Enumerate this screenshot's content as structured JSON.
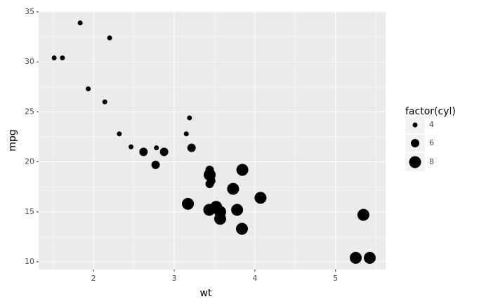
{
  "chart_data": {
    "type": "scatter",
    "x_label": "wt",
    "y_label": "mpg",
    "x": [
      2.62,
      2.875,
      2.32,
      3.215,
      3.44,
      3.46,
      3.57,
      3.19,
      3.15,
      3.44,
      3.44,
      4.07,
      3.73,
      3.78,
      5.25,
      5.424,
      5.345,
      2.2,
      1.615,
      1.835,
      2.465,
      3.52,
      3.435,
      3.84,
      3.845,
      1.935,
      2.14,
      1.513,
      3.17,
      2.77,
      3.57,
      2.78
    ],
    "y": [
      21.0,
      21.0,
      22.8,
      21.4,
      18.7,
      18.1,
      14.3,
      24.4,
      22.8,
      19.2,
      17.8,
      16.4,
      17.3,
      15.2,
      10.4,
      10.4,
      14.7,
      32.4,
      30.4,
      33.9,
      21.5,
      15.5,
      15.2,
      13.3,
      19.2,
      27.3,
      26.0,
      30.4,
      15.8,
      19.7,
      15.0,
      21.4
    ],
    "size": [
      6,
      6,
      4,
      6,
      8,
      6,
      8,
      4,
      4,
      6,
      6,
      8,
      8,
      8,
      8,
      8,
      8,
      4,
      4,
      4,
      4,
      8,
      8,
      8,
      8,
      4,
      4,
      4,
      8,
      6,
      8,
      4
    ],
    "color": "#000000",
    "xlim": [
      1.32,
      5.62
    ],
    "ylim": [
      9.23,
      35.07
    ],
    "xticks": [
      2,
      3,
      4,
      5
    ],
    "yticks": [
      10,
      15,
      20,
      25,
      30,
      35
    ],
    "grid": true,
    "legend": {
      "title": "factor(cyl)",
      "values": [
        4,
        6,
        8
      ],
      "position": "right"
    }
  }
}
